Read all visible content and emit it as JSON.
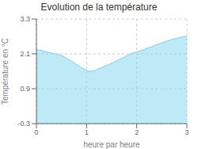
{
  "chart_data": {
    "type": "area",
    "title": "Evolution de la température",
    "xlabel": "heure par heure",
    "ylabel": "Température en °C",
    "x": [
      0,
      0.15,
      0.3,
      0.5,
      0.7,
      0.9,
      1.05,
      1.15,
      1.3,
      1.5,
      1.7,
      1.9,
      2.1,
      2.3,
      2.5,
      2.7,
      3.0
    ],
    "values": [
      2.25,
      2.2,
      2.13,
      2.05,
      1.85,
      1.62,
      1.5,
      1.52,
      1.63,
      1.78,
      1.95,
      2.12,
      2.22,
      2.35,
      2.48,
      2.6,
      2.72
    ],
    "xlim": [
      0,
      3
    ],
    "ylim": [
      -0.3,
      3.3
    ],
    "xticks": [
      0,
      1,
      2,
      3
    ],
    "yticks": [
      -0.3,
      0.9,
      2.1,
      3.3
    ],
    "color": "#7dd4ee",
    "grid": true
  }
}
